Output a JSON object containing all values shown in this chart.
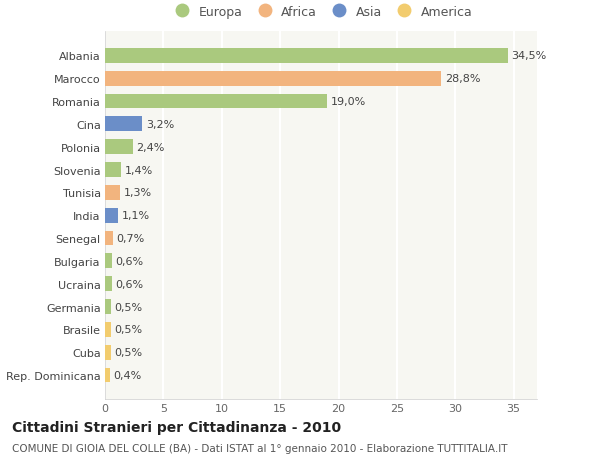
{
  "categories": [
    "Albania",
    "Marocco",
    "Romania",
    "Cina",
    "Polonia",
    "Slovenia",
    "Tunisia",
    "India",
    "Senegal",
    "Bulgaria",
    "Ucraina",
    "Germania",
    "Brasile",
    "Cuba",
    "Rep. Dominicana"
  ],
  "values": [
    34.5,
    28.8,
    19.0,
    3.2,
    2.4,
    1.4,
    1.3,
    1.1,
    0.7,
    0.6,
    0.6,
    0.5,
    0.5,
    0.5,
    0.4
  ],
  "labels": [
    "34,5%",
    "28,8%",
    "19,0%",
    "3,2%",
    "2,4%",
    "1,4%",
    "1,3%",
    "1,1%",
    "0,7%",
    "0,6%",
    "0,6%",
    "0,5%",
    "0,5%",
    "0,5%",
    "0,4%"
  ],
  "continents": [
    "Europa",
    "Africa",
    "Europa",
    "Asia",
    "Europa",
    "Europa",
    "Africa",
    "Asia",
    "Africa",
    "Europa",
    "Europa",
    "Europa",
    "America",
    "America",
    "America"
  ],
  "continent_colors": {
    "Europa": "#aac97e",
    "Africa": "#f2b47e",
    "Asia": "#6b8ec8",
    "America": "#f2cc6e"
  },
  "xlim": [
    0,
    37
  ],
  "xticks": [
    0,
    5,
    10,
    15,
    20,
    25,
    30,
    35
  ],
  "title": "Cittadini Stranieri per Cittadinanza - 2010",
  "subtitle": "COMUNE DI GIOIA DEL COLLE (BA) - Dati ISTAT al 1° gennaio 2010 - Elaborazione TUTTITALIA.IT",
  "background_color": "#ffffff",
  "plot_bg_color": "#f7f7f2",
  "bar_height": 0.65,
  "grid_color": "#ffffff",
  "title_fontsize": 10,
  "subtitle_fontsize": 7.5,
  "label_fontsize": 8,
  "tick_fontsize": 8,
  "legend_fontsize": 9
}
